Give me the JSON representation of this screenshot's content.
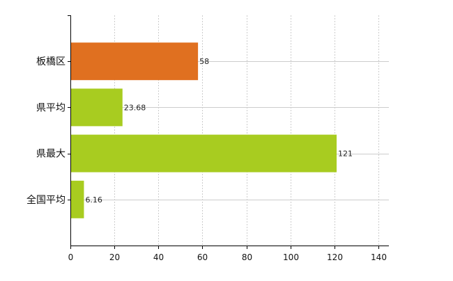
{
  "chart_data": {
    "type": "bar",
    "orientation": "horizontal",
    "categories": [
      "板橋区",
      "県平均",
      "県最大",
      "全国平均"
    ],
    "values": [
      58,
      23.68,
      121,
      6.16
    ],
    "value_labels": [
      "58",
      "23.68",
      "121",
      "6.16"
    ],
    "bar_colors": [
      "#e07020",
      "#a8cc20",
      "#a8cc20",
      "#a8cc20"
    ],
    "xlim": [
      0,
      140
    ],
    "x_ticks": [
      0,
      20,
      40,
      60,
      80,
      100,
      120,
      140
    ],
    "x_tick_labels": [
      "0",
      "20",
      "40",
      "60",
      "80",
      "100",
      "120",
      "140"
    ],
    "grid": true,
    "grid_style": "dashed",
    "legend": false,
    "title": "",
    "xlabel": "",
    "ylabel": ""
  }
}
